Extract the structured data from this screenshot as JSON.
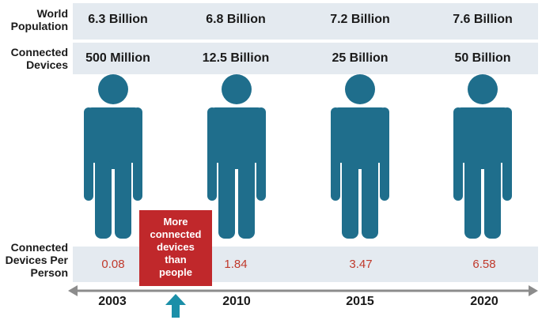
{
  "row_labels": {
    "world_population": "World Population",
    "connected_devices": "Connected Devices",
    "devices_per_person": "Connected Devices Per Person"
  },
  "columns": [
    {
      "year": "2003",
      "world_population": "6.3 Billion",
      "connected_devices": "500 Million",
      "devices_per_person": "0.08"
    },
    {
      "year": "2010",
      "world_population": "6.8 Billion",
      "connected_devices": "12.5 Billion",
      "devices_per_person": "1.84"
    },
    {
      "year": "2015",
      "world_population": "7.2 Billion",
      "connected_devices": "25 Billion",
      "devices_per_person": "3.47"
    },
    {
      "year": "2020",
      "world_population": "7.6 Billion",
      "connected_devices": "50 Billion",
      "devices_per_person": "6.58"
    }
  ],
  "callout": {
    "lines": [
      "More",
      "connected",
      "devices",
      "than",
      "people"
    ],
    "color": "#c0282b"
  },
  "colors": {
    "person": "#1f6e8c",
    "band": "#e4eaf0",
    "value_red": "#c0392b",
    "timeline": "#8c8c8c",
    "arrow": "#1b8fa8"
  },
  "icons": {
    "person": "person-icon",
    "timeline": "timeline-arrow-icon",
    "marker": "up-arrow-icon"
  }
}
